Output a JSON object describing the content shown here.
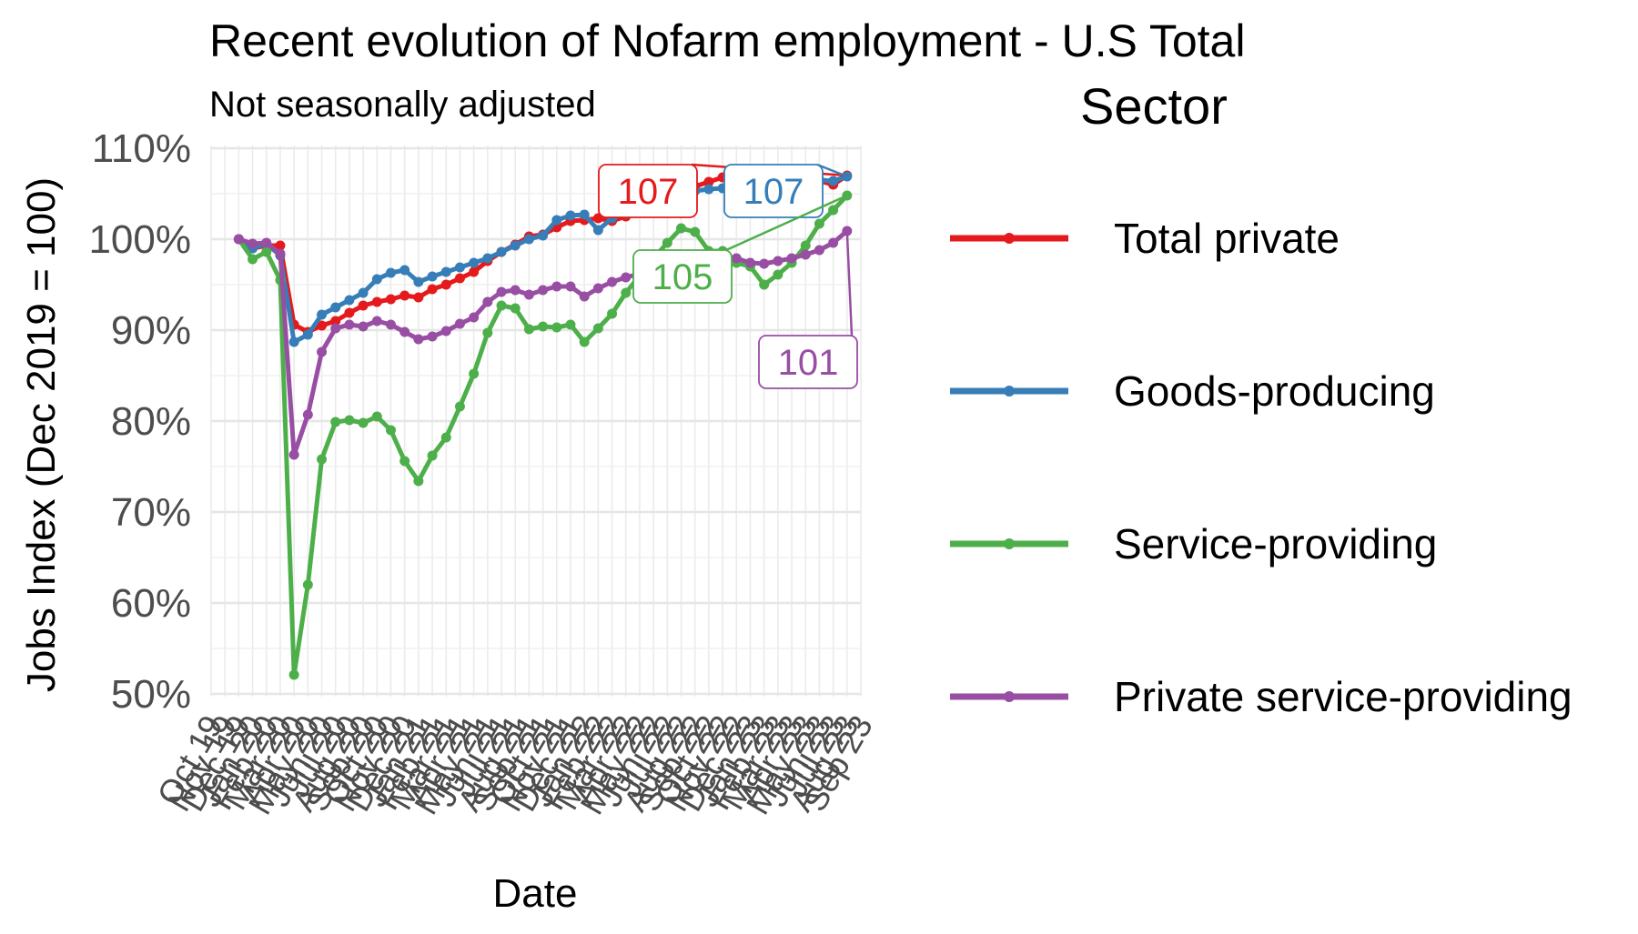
{
  "chart_data": {
    "type": "line",
    "title": "Recent evolution of Nofarm employment - U.S Total",
    "subtitle": "Not seasonally adjusted",
    "xlabel": "Date",
    "ylabel": "Jobs Index (Dec 2019 = 100)",
    "ylim": [
      50,
      110
    ],
    "y_ticks": [
      "50%",
      "60%",
      "70%",
      "80%",
      "90%",
      "100%",
      "110%"
    ],
    "x_tick_labels": [
      "Oct 19",
      "Nov 19",
      "Dec 19",
      "Jan 20",
      "Feb 20",
      "Mar 20",
      "Apr 20",
      "May 20",
      "Jun 20",
      "Jul 20",
      "Aug 20",
      "Sep 20",
      "Oct 20",
      "Nov 20",
      "Dec 20",
      "Jan 21",
      "Feb 21",
      "Mar 21",
      "Apr 21",
      "May 21",
      "Jun 21",
      "Jul 21",
      "Aug 21",
      "Sep 21",
      "Oct 21",
      "Nov 21",
      "Dec 21",
      "Jan 22",
      "Feb 22",
      "Mar 22",
      "Apr 22",
      "May 22",
      "Jun 22",
      "Jul 22",
      "Aug 22",
      "Sep 22",
      "Oct 22",
      "Nov 22",
      "Dec 22",
      "Jan 23",
      "Feb 23",
      "Mar 23",
      "Apr 23",
      "May 23",
      "Jun 23",
      "Jul 23",
      "Aug 23",
      "Sep 23"
    ],
    "x": [
      "Dec 19",
      "Jan 20",
      "Feb 20",
      "Mar 20",
      "Apr 20",
      "May 20",
      "Jun 20",
      "Jul 20",
      "Aug 20",
      "Sep 20",
      "Oct 20",
      "Nov 20",
      "Dec 20",
      "Jan 21",
      "Feb 21",
      "Mar 21",
      "Apr 21",
      "May 21",
      "Jun 21",
      "Jul 21",
      "Aug 21",
      "Sep 21",
      "Oct 21",
      "Nov 21",
      "Dec 21",
      "Jan 22",
      "Feb 22",
      "Mar 22",
      "Apr 22",
      "May 22",
      "Jun 22",
      "Jul 22",
      "Aug 22",
      "Sep 22",
      "Oct 22",
      "Nov 22",
      "Dec 22",
      "Jan 23",
      "Feb 23",
      "Mar 23",
      "Apr 23",
      "May 23",
      "Jun 23",
      "Jul 23",
      "Aug 23"
    ],
    "grid": true,
    "legend_title": "Sector",
    "legend_position": "right",
    "series": [
      {
        "name": "Total private",
        "color": "#e41a1c",
        "end_label": "107",
        "values": [
          100,
          99.0,
          99.3,
          99.3,
          90.6,
          89.8,
          90.5,
          91.0,
          91.9,
          92.7,
          93.1,
          93.4,
          93.8,
          93.6,
          94.5,
          95.0,
          95.7,
          96.4,
          97.6,
          98.6,
          99.4,
          100.3,
          100.5,
          101.3,
          102.0,
          102.1,
          102.3,
          102.0,
          102.5,
          103.3,
          104.1,
          104.8,
          105.4,
          105.8,
          106.3,
          106.8,
          107.0,
          106.6,
          106.6,
          106.3,
          106.3,
          106.3,
          106.4,
          106.0,
          107.0
        ]
      },
      {
        "name": "Goods-producing",
        "color": "#377eb8",
        "end_label": "107",
        "values": [
          100,
          99.0,
          99.5,
          98.2,
          88.7,
          89.5,
          91.7,
          92.5,
          93.3,
          94.1,
          95.6,
          96.3,
          96.6,
          95.3,
          95.9,
          96.4,
          96.9,
          97.4,
          97.9,
          98.6,
          99.3,
          100.0,
          100.4,
          102.1,
          102.6,
          102.7,
          101.0,
          102.3,
          102.8,
          103.5,
          104.1,
          104.6,
          104.9,
          105.3,
          105.5,
          105.6,
          105.4,
          105.7,
          106.1,
          106.1,
          106.3,
          106.5,
          106.5,
          106.4,
          106.9
        ]
      },
      {
        "name": "Service-providing",
        "color": "#4daf4a",
        "end_label": "105",
        "values": [
          100,
          97.8,
          98.6,
          95.5,
          52.1,
          62.0,
          75.8,
          79.9,
          80.1,
          79.8,
          80.5,
          79.0,
          75.6,
          73.4,
          76.2,
          78.2,
          81.6,
          85.2,
          89.7,
          92.7,
          92.4,
          90.1,
          90.4,
          90.3,
          90.6,
          88.7,
          90.2,
          91.8,
          94.1,
          96.0,
          97.9,
          99.6,
          101.2,
          100.8,
          98.7,
          98.7,
          97.4,
          97.0,
          95.0,
          96.1,
          97.4,
          99.3,
          101.7,
          103.2,
          104.8
        ]
      },
      {
        "name": "Private service-providing",
        "color": "#984ea3",
        "end_label": "101",
        "values": [
          100,
          99.5,
          99.6,
          98.4,
          76.3,
          80.7,
          87.6,
          90.2,
          90.6,
          90.4,
          91.0,
          90.6,
          89.8,
          89.0,
          89.3,
          89.9,
          90.7,
          91.4,
          93.1,
          94.2,
          94.4,
          93.9,
          94.4,
          94.8,
          94.8,
          93.7,
          94.6,
          95.3,
          95.8,
          96.2,
          96.7,
          97.0,
          97.4,
          97.5,
          97.7,
          97.9,
          97.9,
          97.4,
          97.3,
          97.6,
          97.9,
          98.3,
          98.8,
          99.6,
          100.9
        ]
      }
    ]
  }
}
